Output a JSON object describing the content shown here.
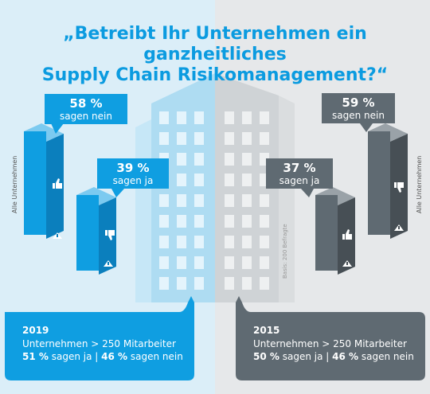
{
  "title": {
    "line1": "„Betreibt Ihr Unternehmen ein ganzheitliches",
    "line2": "Supply Chain Risikomanagement?“"
  },
  "chart_data": [
    {
      "type": "bar",
      "year": "2019",
      "categories": [
        "sagen nein",
        "sagen ja"
      ],
      "values": [
        58,
        39
      ],
      "unit": "%",
      "axis_label": "Alle Unternehmen",
      "subgroup": {
        "label": "Unternehmen > 250 Mitarbeiter",
        "ja_value": "51 %",
        "ja_label": "sagen ja",
        "nein_value": "46 %",
        "nein_label": "sagen nein"
      }
    },
    {
      "type": "bar",
      "year": "2015",
      "categories": [
        "sagen ja",
        "sagen nein"
      ],
      "values": [
        37,
        59
      ],
      "unit": "%",
      "axis_label": "Alle Unternehmen",
      "subgroup": {
        "label": "Unternehmen > 250 Mitarbeiter",
        "ja_value": "50 %",
        "ja_label": "sagen ja",
        "nein_value": "46 %",
        "nein_label": "sagen nein"
      }
    }
  ],
  "bubbles": {
    "l_nein_pct": "58 %",
    "l_nein_lbl": "sagen nein",
    "l_ja_pct": "39 %",
    "l_ja_lbl": "sagen ja",
    "r_ja_pct": "37 %",
    "r_ja_lbl": "sagen ja",
    "r_nein_pct": "59 %",
    "r_nein_lbl": "sagen nein"
  },
  "base_note": "Basis: 200 Befragte",
  "colors": {
    "accent_blue": "#0f9ee1",
    "accent_grey": "#5f6a72",
    "bg_left": "#dbeef8",
    "bg_right": "#e6e8ea"
  },
  "icons": [
    "thumbs-up-icon",
    "thumbs-down-icon",
    "warning-icon"
  ]
}
